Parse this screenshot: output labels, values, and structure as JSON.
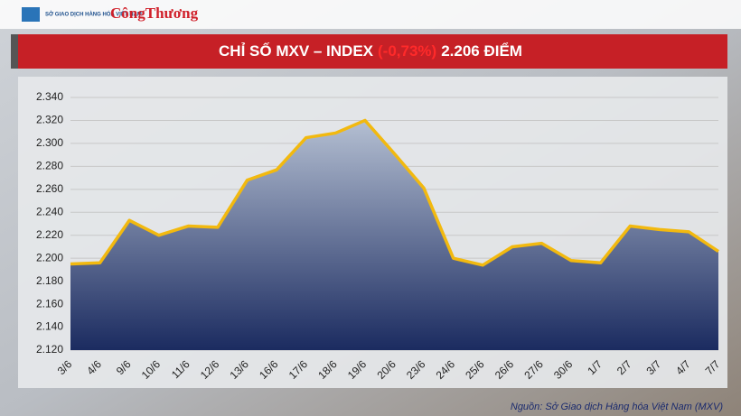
{
  "logo": {
    "name": "SỞ GIAO DỊCH HÀNG HÓA VIỆT NAM",
    "brand": "CôngThương"
  },
  "chart_data": {
    "type": "area",
    "title": "CHỈ SỐ MXV – INDEX",
    "change": "(-0,73%)",
    "title_value": "2.206 ĐIỂM",
    "source": "Nguồn: Sở Giao dịch Hàng hóa Việt Nam (MXV)",
    "categories": [
      "3/6",
      "4/6",
      "9/6",
      "10/6",
      "11/6",
      "12/6",
      "13/6",
      "16/6",
      "17/6",
      "18/6",
      "19/6",
      "20/6",
      "23/6",
      "24/6",
      "25/6",
      "26/6",
      "27/6",
      "30/6",
      "1/7",
      "2/7",
      "3/7",
      "4/7",
      "7/7"
    ],
    "values": [
      2195,
      2196,
      2233,
      2220,
      2228,
      2227,
      2268,
      2277,
      2305,
      2309,
      2320,
      2291,
      2261,
      2200,
      2194,
      2210,
      2213,
      2198,
      2196,
      2228,
      2225,
      2223,
      2206
    ],
    "line_color": "#f2b90f",
    "fill_top": "#b4bfd2",
    "fill_bottom": "#1b2b60",
    "ylim": [
      2120,
      2340
    ],
    "yticks": [
      {
        "value": 2120,
        "label": "2.120"
      },
      {
        "value": 2140,
        "label": "2.140"
      },
      {
        "value": 2160,
        "label": "2.160"
      },
      {
        "value": 2180,
        "label": "2.180"
      },
      {
        "value": 2200,
        "label": "2.200"
      },
      {
        "value": 2220,
        "label": "2.220"
      },
      {
        "value": 2240,
        "label": "2.240"
      },
      {
        "value": 2260,
        "label": "2.260"
      },
      {
        "value": 2280,
        "label": "2.280"
      },
      {
        "value": 2300,
        "label": "2.300"
      },
      {
        "value": 2320,
        "label": "2.320"
      },
      {
        "value": 2340,
        "label": "2.340"
      }
    ],
    "grid": true
  }
}
